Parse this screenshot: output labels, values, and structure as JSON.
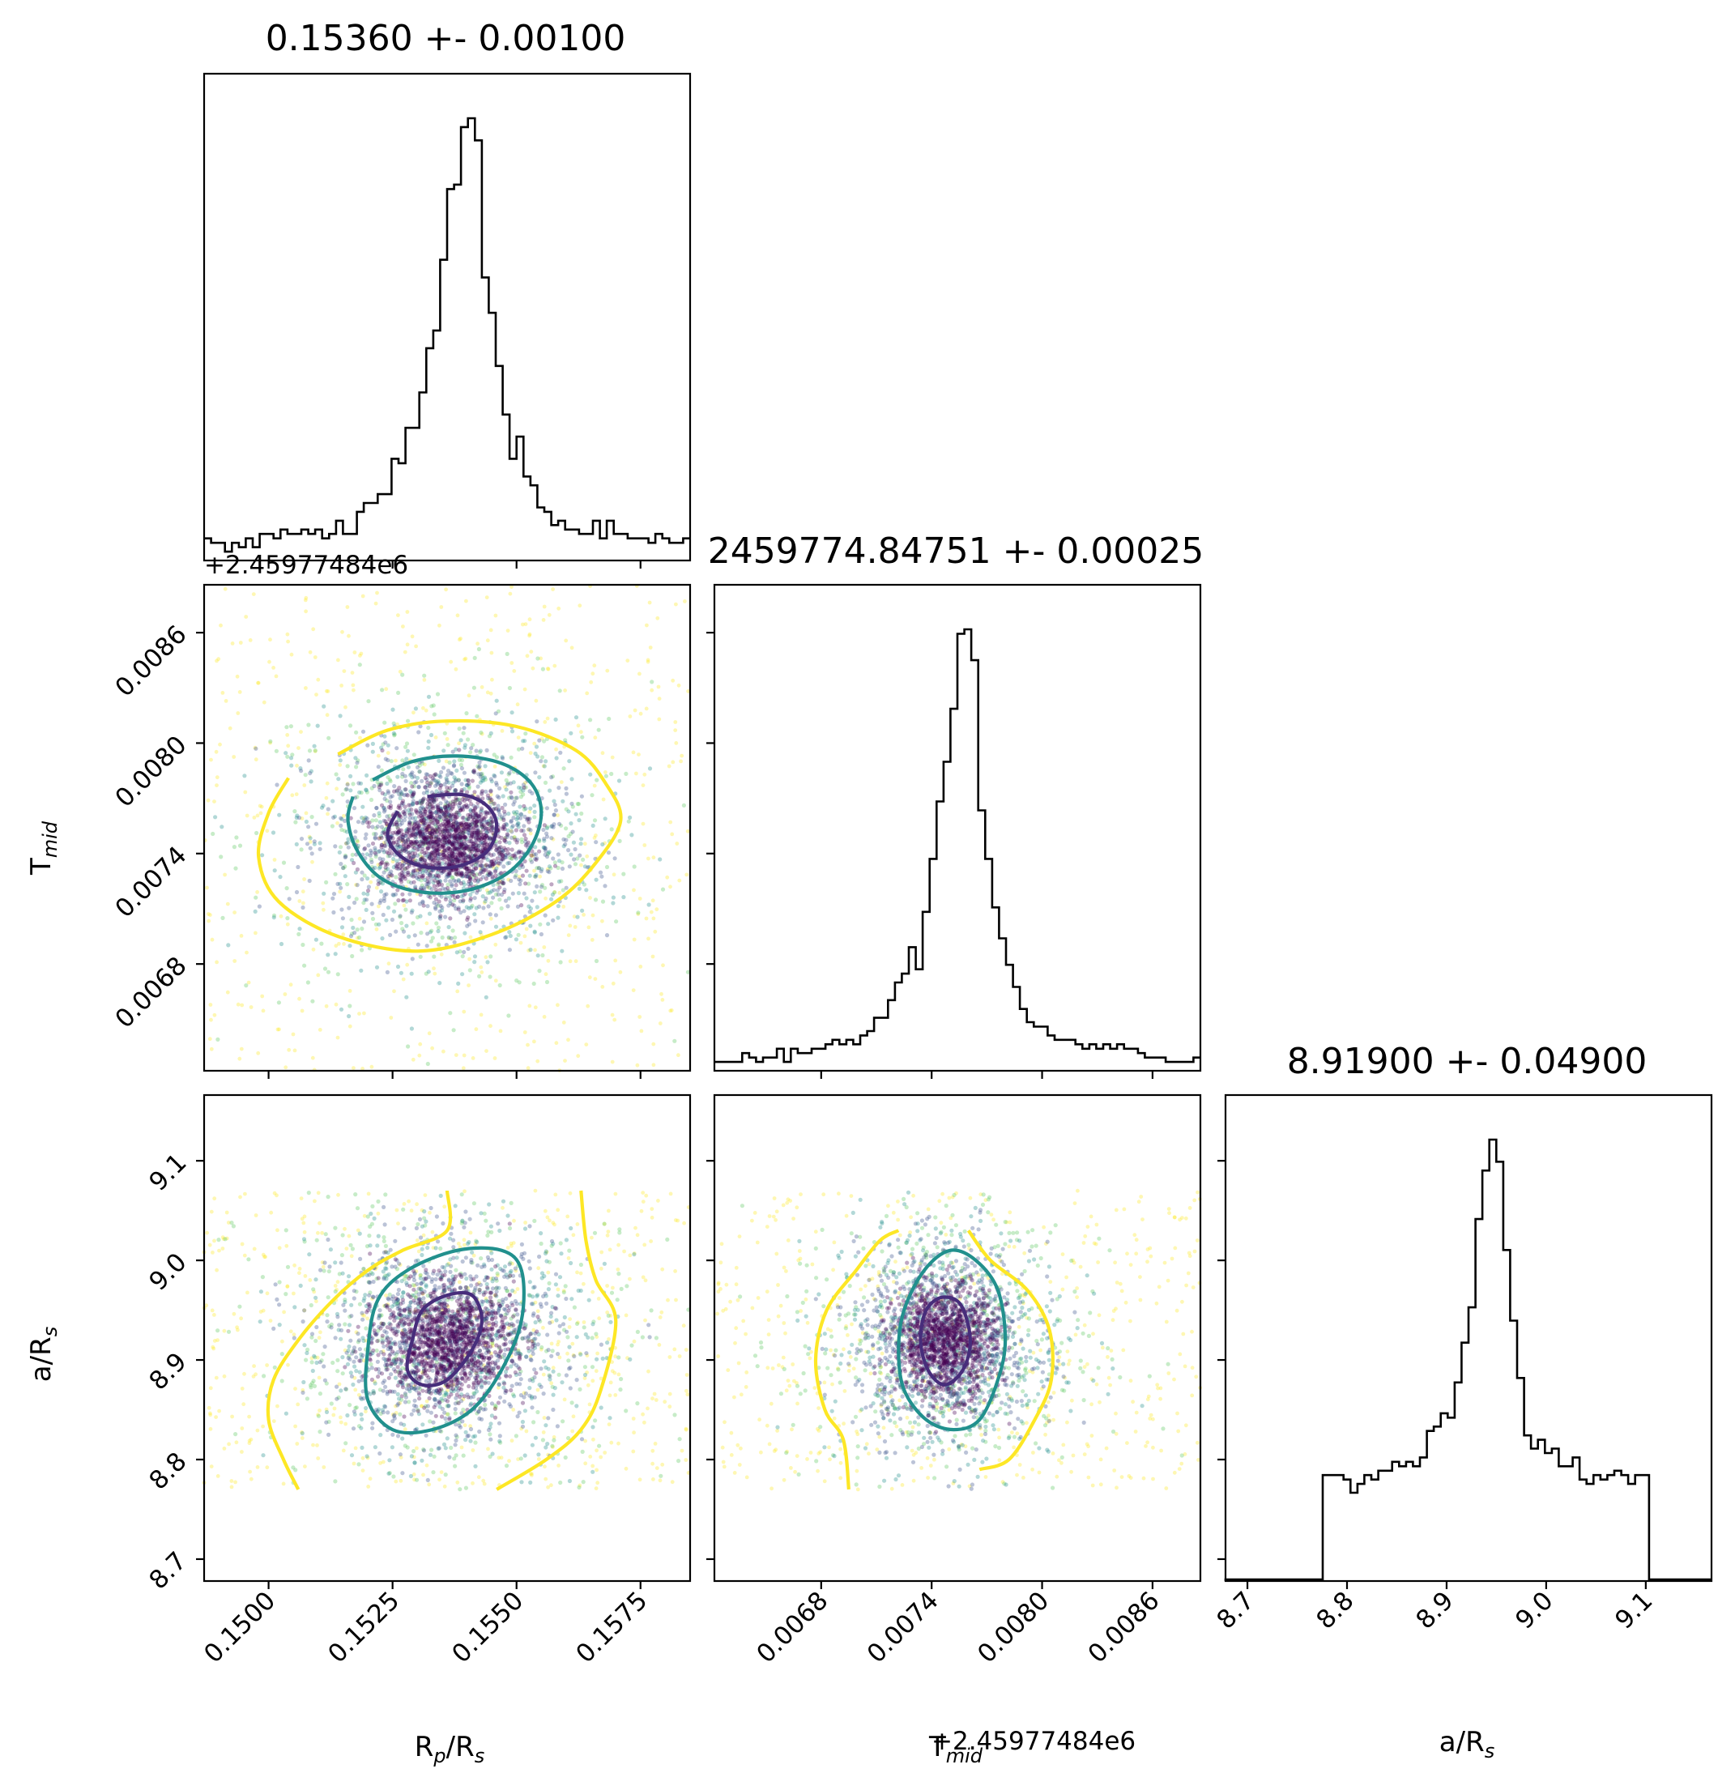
{
  "chart_data": {
    "type": "corner",
    "parameters": [
      {
        "key": "rp",
        "label": "R",
        "label_sub": "p",
        "label_tail": "/R",
        "label_tail_sub": "s",
        "range": [
          0.1487,
          0.1585
        ],
        "ticks": [
          "0.1500",
          "0.1525",
          "0.1550",
          "0.1575"
        ],
        "tick_values": [
          0.15,
          0.1525,
          0.155,
          0.1575
        ],
        "offset_text": "+2.45977484e6"
      },
      {
        "key": "tmid",
        "label": "T",
        "label_sub": "mid",
        "range": [
          0.00622,
          0.00886
        ],
        "ticks": [
          "0.0068",
          "0.0074",
          "0.0080",
          "0.0086"
        ],
        "tick_values": [
          0.0068,
          0.0074,
          0.008,
          0.0086
        ],
        "offset_text": "+2.45977484e6"
      },
      {
        "key": "ars",
        "label": "a/R",
        "label_sub": "s",
        "range": [
          8.678,
          9.166
        ],
        "ticks": [
          "8.7",
          "8.8",
          "8.9",
          "9.0",
          "9.1"
        ],
        "tick_values": [
          8.7,
          8.8,
          8.9,
          9.0,
          9.1
        ]
      }
    ],
    "titles": [
      "0.15360 +- 0.00100",
      "2459774.84751 +- 0.00025",
      "8.91900 +- 0.04900"
    ],
    "histograms": [
      {
        "param": "rp",
        "center": 0.1536,
        "edges": [
          0.1487,
          0.1585
        ],
        "counts": [
          0.05,
          0.04,
          0.04,
          0.02,
          0.04,
          0.03,
          0.05,
          0.03,
          0.06,
          0.06,
          0.05,
          0.07,
          0.06,
          0.06,
          0.07,
          0.06,
          0.07,
          0.05,
          0.06,
          0.09,
          0.06,
          0.06,
          0.11,
          0.13,
          0.13,
          0.15,
          0.15,
          0.23,
          0.22,
          0.3,
          0.3,
          0.38,
          0.48,
          0.52,
          0.68,
          0.84,
          0.85,
          0.98,
          1.0,
          0.95,
          0.64,
          0.56,
          0.44,
          0.33,
          0.23,
          0.28,
          0.19,
          0.17,
          0.12,
          0.11,
          0.08,
          0.09,
          0.07,
          0.07,
          0.06,
          0.06,
          0.09,
          0.05,
          0.09,
          0.06,
          0.06,
          0.05,
          0.05,
          0.05,
          0.04,
          0.06,
          0.05,
          0.04,
          0.04,
          0.05
        ]
      },
      {
        "param": "tmid",
        "center": 0.00747,
        "edges": [
          0.00622,
          0.00886
        ],
        "counts": [
          0.02,
          0.02,
          0.02,
          0.02,
          0.04,
          0.03,
          0.02,
          0.03,
          0.03,
          0.05,
          0.02,
          0.05,
          0.04,
          0.04,
          0.05,
          0.05,
          0.06,
          0.07,
          0.06,
          0.07,
          0.06,
          0.08,
          0.09,
          0.12,
          0.12,
          0.16,
          0.2,
          0.22,
          0.28,
          0.23,
          0.36,
          0.48,
          0.61,
          0.7,
          0.82,
          0.99,
          1.0,
          0.93,
          0.59,
          0.48,
          0.37,
          0.3,
          0.24,
          0.19,
          0.14,
          0.11,
          0.1,
          0.1,
          0.08,
          0.07,
          0.07,
          0.07,
          0.06,
          0.05,
          0.06,
          0.05,
          0.06,
          0.05,
          0.06,
          0.05,
          0.05,
          0.04,
          0.03,
          0.03,
          0.03,
          0.02,
          0.02,
          0.02,
          0.02,
          0.03
        ]
      },
      {
        "param": "ars",
        "center": 8.919,
        "edges": [
          8.678,
          9.166
        ],
        "counts": [
          0.0,
          0.0,
          0.0,
          0.0,
          0.0,
          0.0,
          0.0,
          0.0,
          0.0,
          0.0,
          0.0,
          0.0,
          0.0,
          0.0,
          0.24,
          0.24,
          0.24,
          0.23,
          0.2,
          0.22,
          0.24,
          0.23,
          0.25,
          0.25,
          0.27,
          0.26,
          0.27,
          0.26,
          0.28,
          0.34,
          0.35,
          0.38,
          0.37,
          0.45,
          0.54,
          0.62,
          0.82,
          0.93,
          1.0,
          0.95,
          0.75,
          0.59,
          0.46,
          0.33,
          0.3,
          0.32,
          0.29,
          0.3,
          0.26,
          0.26,
          0.28,
          0.23,
          0.22,
          0.24,
          0.23,
          0.24,
          0.25,
          0.24,
          0.22,
          0.24,
          0.24,
          0.0,
          0.0,
          0.0,
          0.0,
          0.0,
          0.0,
          0.0,
          0.0,
          0.0
        ]
      }
    ],
    "scatter_panels": [
      {
        "x": "rp",
        "y": "tmid",
        "center": [
          0.1536,
          0.00747
        ],
        "sigma": [
          0.0012,
          0.00025
        ],
        "x_bounds": [
          0.1487,
          0.1585
        ],
        "y_bounds": [
          0.00622,
          0.00886
        ]
      },
      {
        "x": "rp",
        "y": "ars",
        "center": [
          0.1536,
          8.919
        ],
        "sigma": [
          0.0012,
          0.05
        ],
        "x_bounds": [
          0.1487,
          0.1585
        ],
        "y_bounds": [
          8.77,
          9.07
        ]
      },
      {
        "x": "tmid",
        "y": "ars",
        "center": [
          0.00747,
          8.919
        ],
        "sigma": [
          0.00025,
          0.05
        ],
        "x_bounds": [
          0.00622,
          0.00886
        ],
        "y_bounds": [
          8.77,
          9.07
        ]
      }
    ],
    "contours": [
      {
        "x": "rp",
        "y": "tmid",
        "levels": [
          {
            "color": "#fde725",
            "points": [
              [
                0.1514,
                0.00794
              ],
              [
                0.1524,
                0.00807
              ],
              [
                0.1536,
                0.00812
              ],
              [
                0.155,
                0.00809
              ],
              [
                0.1562,
                0.00796
              ],
              [
                0.1568,
                0.00778
              ],
              [
                0.1571,
                0.00758
              ],
              [
                0.1566,
                0.00735
              ],
              [
                0.1558,
                0.00714
              ],
              [
                0.1545,
                0.00696
              ],
              [
                0.153,
                0.00687
              ],
              [
                0.1514,
                0.00695
              ],
              [
                0.1502,
                0.00714
              ],
              [
                0.1498,
                0.00738
              ],
              [
                0.15,
                0.00762
              ],
              [
                0.1504,
                0.00781
              ]
            ]
          },
          {
            "color": "#21908d",
            "points": [
              [
                0.1521,
                0.0078
              ],
              [
                0.1529,
                0.0079
              ],
              [
                0.1538,
                0.00793
              ],
              [
                0.1547,
                0.00789
              ],
              [
                0.1553,
                0.00778
              ],
              [
                0.1555,
                0.00762
              ],
              [
                0.1553,
                0.00744
              ],
              [
                0.1548,
                0.00729
              ],
              [
                0.154,
                0.0072
              ],
              [
                0.1531,
                0.00719
              ],
              [
                0.1523,
                0.00726
              ],
              [
                0.1518,
                0.00741
              ],
              [
                0.1516,
                0.00758
              ],
              [
                0.1517,
                0.00771
              ]
            ]
          },
          {
            "color": "#472d7b",
            "points": [
              [
                0.1532,
                0.00771
              ],
              [
                0.1539,
                0.00772
              ],
              [
                0.1544,
                0.00766
              ],
              [
                0.1546,
                0.00755
              ],
              [
                0.1544,
                0.00741
              ],
              [
                0.1538,
                0.00733
              ],
              [
                0.1531,
                0.00733
              ],
              [
                0.1526,
                0.0074
              ],
              [
                0.1524,
                0.00751
              ],
              [
                0.1526,
                0.00763
              ]
            ]
          }
        ]
      },
      {
        "x": "rp",
        "y": "ars",
        "levels": [
          {
            "color": "#fde725",
            "points": [
              [
                0.1506,
                8.77
              ],
              [
                0.1503,
                8.8
              ],
              [
                0.15,
                8.84
              ],
              [
                0.1501,
                8.88
              ],
              [
                0.1506,
                8.92
              ],
              [
                0.1513,
                8.96
              ],
              [
                0.152,
                8.99
              ],
              [
                0.1527,
                9.01
              ],
              [
                0.1536,
                9.03
              ],
              [
                0.1536,
                9.07
              ]
            ]
          },
          {
            "color": "#fde725",
            "points": [
              [
                0.1546,
                8.77
              ],
              [
                0.1556,
                8.8
              ],
              [
                0.1563,
                8.83
              ],
              [
                0.1567,
                8.87
              ],
              [
                0.157,
                8.94
              ],
              [
                0.1566,
                8.98
              ],
              [
                0.1564,
                9.02
              ],
              [
                0.1563,
                9.07
              ]
            ]
          },
          {
            "color": "#21908d",
            "points": [
              [
                0.152,
                8.91
              ],
              [
                0.1522,
                8.96
              ],
              [
                0.1528,
                8.99
              ],
              [
                0.1538,
                9.01
              ],
              [
                0.1547,
                9.01
              ],
              [
                0.1551,
                8.99
              ],
              [
                0.1551,
                8.94
              ],
              [
                0.1547,
                8.89
              ],
              [
                0.1541,
                8.85
              ],
              [
                0.1533,
                8.83
              ],
              [
                0.1525,
                8.83
              ],
              [
                0.152,
                8.86
              ]
            ]
          },
          {
            "color": "#472d7b",
            "points": [
              [
                0.1529,
                8.92
              ],
              [
                0.1531,
                8.95
              ],
              [
                0.1536,
                8.965
              ],
              [
                0.1541,
                8.965
              ],
              [
                0.1543,
                8.94
              ],
              [
                0.1541,
                8.91
              ],
              [
                0.1536,
                8.88
              ],
              [
                0.1531,
                8.875
              ],
              [
                0.1528,
                8.89
              ]
            ]
          }
        ]
      },
      {
        "x": "tmid",
        "y": "ars",
        "levels": [
          {
            "color": "#fde725",
            "points": [
              [
                0.00722,
                9.03
              ],
              [
                0.00712,
                9.02
              ],
              [
                0.00699,
                8.99
              ],
              [
                0.00683,
                8.95
              ],
              [
                0.00677,
                8.9
              ],
              [
                0.00682,
                8.85
              ],
              [
                0.00692,
                8.82
              ],
              [
                0.00695,
                8.77
              ]
            ]
          },
          {
            "color": "#fde725",
            "points": [
              [
                0.0076,
                9.03
              ],
              [
                0.00772,
                9.0
              ],
              [
                0.00792,
                8.97
              ],
              [
                0.00804,
                8.93
              ],
              [
                0.00805,
                8.88
              ],
              [
                0.00796,
                8.84
              ],
              [
                0.00782,
                8.8
              ],
              [
                0.00766,
                8.79
              ]
            ]
          },
          {
            "color": "#21908d",
            "points": [
              [
                0.00722,
                8.91
              ],
              [
                0.00725,
                8.95
              ],
              [
                0.00736,
                8.99
              ],
              [
                0.0075,
                9.01
              ],
              [
                0.00764,
                9.0
              ],
              [
                0.00776,
                8.97
              ],
              [
                0.0078,
                8.92
              ],
              [
                0.00776,
                8.88
              ],
              [
                0.00766,
                8.84
              ],
              [
                0.00752,
                8.83
              ],
              [
                0.00737,
                8.84
              ],
              [
                0.00725,
                8.87
              ]
            ]
          },
          {
            "color": "#472d7b",
            "points": [
              [
                0.00734,
                8.92
              ],
              [
                0.00737,
                8.95
              ],
              [
                0.00746,
                8.963
              ],
              [
                0.00756,
                8.955
              ],
              [
                0.00761,
                8.92
              ],
              [
                0.00757,
                8.89
              ],
              [
                0.00747,
                8.875
              ],
              [
                0.00738,
                8.89
              ]
            ]
          }
        ]
      }
    ]
  }
}
